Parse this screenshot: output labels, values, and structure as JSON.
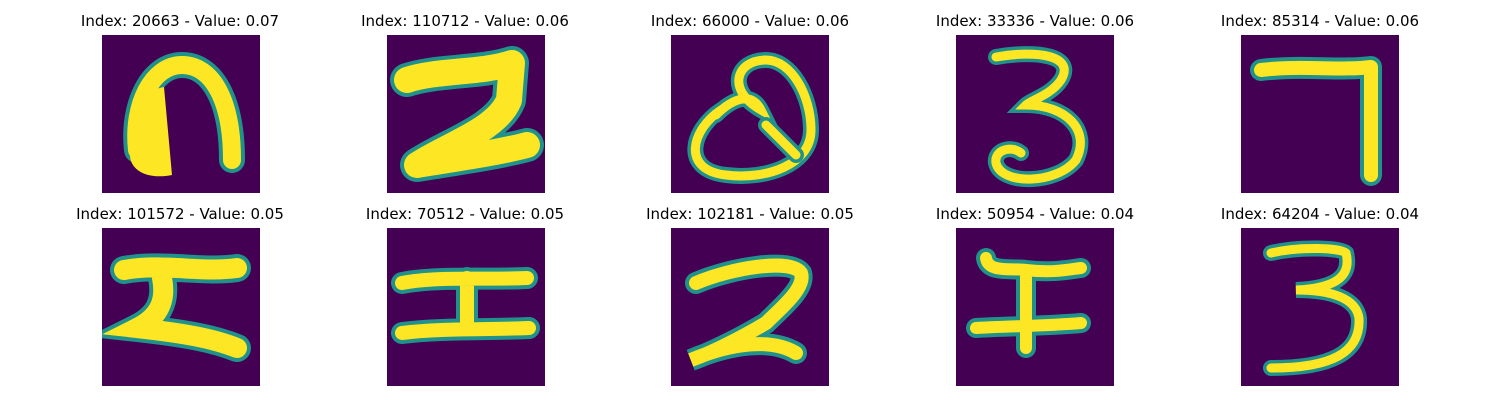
{
  "figure": {
    "panels": [
      {
        "title": "Index: 20663 - Value: 0.07",
        "glyph": "arch"
      },
      {
        "title": "Index: 110712 - Value: 0.06",
        "glyph": "two-flat"
      },
      {
        "title": "Index: 66000 - Value: 0.06",
        "glyph": "q-loop"
      },
      {
        "title": "Index: 33336 - Value: 0.06",
        "glyph": "three"
      },
      {
        "title": "Index: 85314 - Value: 0.06",
        "glyph": "seven"
      },
      {
        "title": "Index: 101572 - Value: 0.05",
        "glyph": "z-bar"
      },
      {
        "title": "Index: 70512 - Value: 0.05",
        "glyph": "i-beam"
      },
      {
        "title": "Index: 102181 - Value: 0.05",
        "glyph": "two-curved"
      },
      {
        "title": "Index: 50954 - Value: 0.04",
        "glyph": "five-like"
      },
      {
        "title": "Index: 64204 - Value: 0.04",
        "glyph": "three-tall"
      }
    ],
    "colors": {
      "background": "#440154",
      "stroke_edge": "#21918c",
      "stroke_core": "#fde725"
    }
  }
}
